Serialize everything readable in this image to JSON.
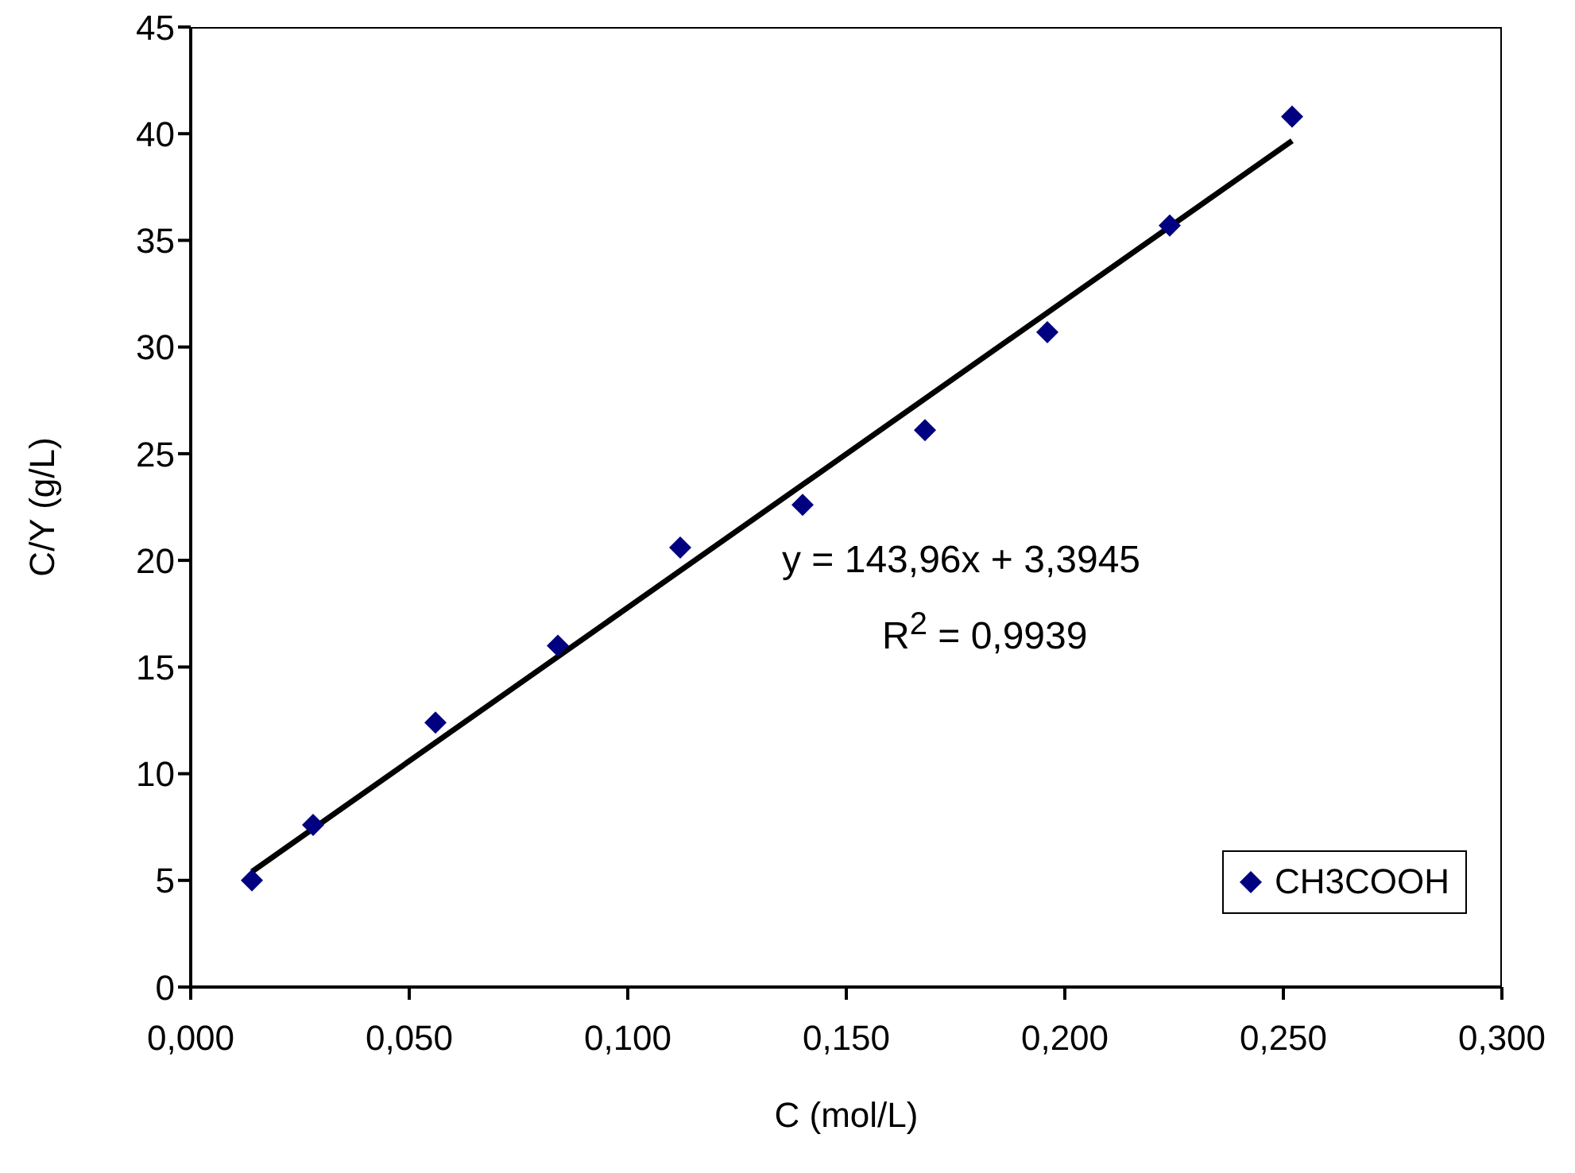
{
  "chart_data": {
    "type": "scatter",
    "xlabel": "C (mol/L)",
    "ylabel": "C/Y (g/L)",
    "series": [
      {
        "name": "CH3COOH",
        "type": "scatter",
        "color": "#000080",
        "marker": "diamond",
        "x": [
          0.014,
          0.028,
          0.056,
          0.084,
          0.112,
          0.14,
          0.168,
          0.196,
          0.224,
          0.252
        ],
        "values": [
          5.0,
          7.6,
          12.4,
          16.0,
          20.6,
          22.6,
          26.1,
          30.7,
          35.7,
          40.8
        ]
      },
      {
        "type": "line",
        "color": "#000000",
        "marker": "none",
        "line_style": "solid",
        "x": [
          0.014,
          0.252
        ],
        "values": [
          5.41,
          39.67
        ]
      }
    ],
    "xlim": [
      0,
      0.3
    ],
    "xticks": [
      {
        "value": 0,
        "label": "0,000"
      },
      {
        "value": 0.05,
        "label": "0,050"
      },
      {
        "value": 0.1,
        "label": "0,100"
      },
      {
        "value": 0.15,
        "label": "0,150"
      },
      {
        "value": 0.2,
        "label": "0,200"
      },
      {
        "value": 0.25,
        "label": "0,250"
      },
      {
        "value": 0.3,
        "label": "0,300"
      }
    ],
    "ylim": [
      0,
      45
    ],
    "yticks": [
      0,
      5,
      10,
      15,
      20,
      25,
      30,
      35,
      40,
      45
    ],
    "grid": false,
    "legend": "bottom right",
    "annotations": [
      "y = 143,96x + 3,3945",
      "R$^{2}$ = 0,9939"
    ]
  }
}
